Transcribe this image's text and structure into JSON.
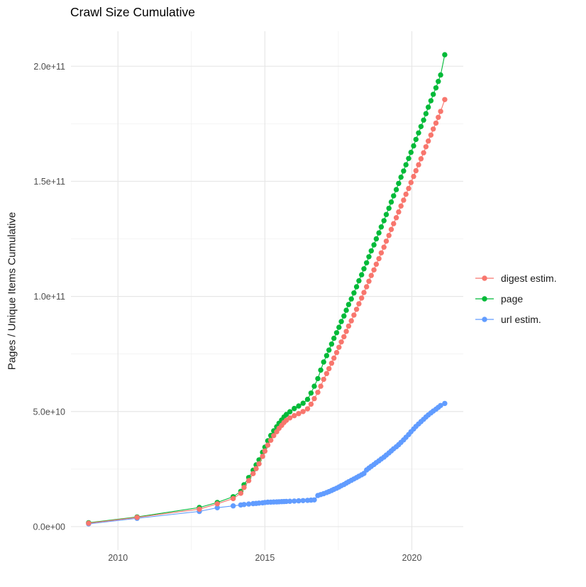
{
  "title": "Crawl Size Cumulative",
  "axes": {
    "y_title": "Pages / Unique Items Cumulative",
    "y_ticks": [
      {
        "label": "0.0e+00",
        "value": 0
      },
      {
        "label": "5.0e+10",
        "value": 50000000000.0
      },
      {
        "label": "1.0e+11",
        "value": 100000000000.0
      },
      {
        "label": "1.5e+11",
        "value": 150000000000.0
      },
      {
        "label": "2.0e+11",
        "value": 200000000000.0
      }
    ],
    "y_minor": [
      25000000000.0,
      75000000000.0,
      125000000000.0,
      175000000000.0
    ],
    "x_ticks": [
      {
        "label": "2010",
        "value": 2010
      },
      {
        "label": "2015",
        "value": 2015
      },
      {
        "label": "2020",
        "value": 2020
      }
    ],
    "x_minor": [
      2012.5,
      2017.5
    ]
  },
  "legend": {
    "entries": [
      {
        "label": "digest estim.",
        "color": "#F8766D"
      },
      {
        "label": "page",
        "color": "#00BA38"
      },
      {
        "label": "url estim.",
        "color": "#619CFF"
      }
    ]
  },
  "colors": {
    "background": "#ffffff",
    "grid_major": "#e7e7e7",
    "grid_minor": "#f0f0f0",
    "tick_text": "#4d4d4d",
    "digest": "#F8766D",
    "page": "#00BA38",
    "url": "#619CFF"
  },
  "chart_data": {
    "type": "line",
    "title": "Crawl Size Cumulative",
    "xlabel": "",
    "ylabel": "Pages / Unique Items Cumulative",
    "x_unit": "year (decimal, crawl date)",
    "xlim": [
      2008.4,
      2021.75
    ],
    "ylim": [
      -10200000000.0,
      215200000000.0
    ],
    "grid": true,
    "legend_position": "right",
    "marker": "point",
    "x": [
      2009,
      2010.65,
      2012.77,
      2013.38,
      2013.92,
      2014.18,
      2014.29,
      2014.45,
      2014.6,
      2014.7,
      2014.8,
      2014.92,
      2015,
      2015.1,
      2015.2,
      2015.3,
      2015.4,
      2015.48,
      2015.57,
      2015.65,
      2015.73,
      2015.85,
      2016,
      2016.15,
      2016.3,
      2016.45,
      2016.57,
      2016.68,
      2016.8,
      2016.9,
      2017,
      2017.1,
      2017.18,
      2017.27,
      2017.35,
      2017.44,
      2017.52,
      2017.6,
      2017.69,
      2017.77,
      2017.85,
      2017.94,
      2018.03,
      2018.12,
      2018.2,
      2018.29,
      2018.37,
      2018.46,
      2018.54,
      2018.62,
      2018.71,
      2018.79,
      2018.88,
      2018.96,
      2019.05,
      2019.13,
      2019.22,
      2019.3,
      2019.38,
      2019.47,
      2019.55,
      2019.63,
      2019.72,
      2019.8,
      2019.89,
      2019.97,
      2020.06,
      2020.14,
      2020.23,
      2020.31,
      2020.4,
      2020.48,
      2020.56,
      2020.65,
      2020.73,
      2020.82,
      2020.9,
      2020.98,
      2021.12
    ],
    "series": [
      {
        "name": "digest estim.",
        "color": "#F8766D",
        "values": [
          1500000000.0,
          4000000000.0,
          7600000000.0,
          9900000000.0,
          12200000000.0,
          14500000000.0,
          17000000000.0,
          20000000000.0,
          23000000000.0,
          25200000000.0,
          27300000000.0,
          30500000000.0,
          32800000000.0,
          35400000000.0,
          37500000000.0,
          39500000000.0,
          41200000000.0,
          42700000000.0,
          44000000000.0,
          45200000000.0,
          46200000000.0,
          47200000000.0,
          48200000000.0,
          49100000000.0,
          50000000000.0,
          51200000000.0,
          53200000000.0,
          55600000000.0,
          58300000000.0,
          61000000000.0,
          64000000000.0,
          66500000000.0,
          68600000000.0,
          71000000000.0,
          73200000000.0,
          75600000000.0,
          77900000000.0,
          80200000000.0,
          82500000000.0,
          84800000000.0,
          87100000000.0,
          89400000000.0,
          91900000000.0,
          94400000000.0,
          96800000000.0,
          99300000000.0,
          101700000000.0,
          104200000000.0,
          106600000000.0,
          109100000000.0,
          111500000000.0,
          114000000000.0,
          116400000000.0,
          118900000000.0,
          121400000000.0,
          124000000000.0,
          126500000000.0,
          129100000000.0,
          131600000000.0,
          134200000000.0,
          136700000000.0,
          139300000000.0,
          141800000000.0,
          144400000000.0,
          146900000000.0,
          149500000000.0,
          152100000000.0,
          154600000000.0,
          157200000000.0,
          159800000000.0,
          162400000000.0,
          165000000000.0,
          167500000000.0,
          170100000000.0,
          172700000000.0,
          175300000000.0,
          177800000000.0,
          180400000000.0,
          185500000000.0
        ]
      },
      {
        "name": "page",
        "color": "#00BA38",
        "values": [
          1700000000.0,
          4200000000.0,
          8300000000.0,
          10500000000.0,
          13000000000.0,
          15300000000.0,
          18200000000.0,
          21300000000.0,
          24500000000.0,
          26800000000.0,
          29000000000.0,
          32300000000.0,
          34500000000.0,
          37300000000.0,
          39600000000.0,
          41600000000.0,
          43400000000.0,
          44900000000.0,
          46300000000.0,
          47600000000.0,
          48700000000.0,
          49900000000.0,
          51300000000.0,
          52400000000.0,
          53600000000.0,
          55300000000.0,
          58000000000.0,
          61000000000.0,
          64300000000.0,
          68000000000.0,
          71500000000.0,
          74300000000.0,
          76700000000.0,
          79300000000.0,
          81800000000.0,
          84200000000.0,
          86600000000.0,
          89100000000.0,
          91500000000.0,
          94000000000.0,
          96500000000.0,
          98900000000.0,
          101500000000.0,
          104200000000.0,
          106800000000.0,
          109400000000.0,
          112000000000.0,
          114600000000.0,
          117200000000.0,
          119800000000.0,
          122400000000.0,
          125000000000.0,
          127600000000.0,
          130200000000.0,
          132900000000.0,
          135600000000.0,
          138300000000.0,
          141000000000.0,
          143700000000.0,
          146400000000.0,
          149100000000.0,
          151800000000.0,
          154500000000.0,
          157200000000.0,
          159900000000.0,
          162600000000.0,
          165400000000.0,
          168200000000.0,
          171000000000.0,
          173800000000.0,
          176600000000.0,
          179400000000.0,
          182200000000.0,
          185000000000.0,
          187800000000.0,
          190600000000.0,
          193400000000.0,
          196200000000.0,
          205000000000.0
        ]
      },
      {
        "name": "url estim.",
        "color": "#619CFF",
        "values": [
          1200000000.0,
          3600000000.0,
          6600000000.0,
          8200000000.0,
          9000000000.0,
          9400000000.0,
          9600000000.0,
          9800000000.0,
          10000000000.0,
          10100000000.0,
          10200000000.0,
          10350000000.0,
          10500000000.0,
          10600000000.0,
          10650000000.0,
          10700000000.0,
          10750000000.0,
          10800000000.0,
          10850000000.0,
          10900000000.0,
          10950000000.0,
          11000000000.0,
          11100000000.0,
          11200000000.0,
          11300000000.0,
          11400000000.0,
          11500000000.0,
          11600000000.0,
          13500000000.0,
          13900000000.0,
          14300000000.0,
          14800000000.0,
          15200000000.0,
          15700000000.0,
          16200000000.0,
          16700000000.0,
          17200000000.0,
          17800000000.0,
          18300000000.0,
          18900000000.0,
          19500000000.0,
          20100000000.0,
          20700000000.0,
          21300000000.0,
          21900000000.0,
          22500000000.0,
          23100000000.0,
          24600000000.0,
          25400000000.0,
          26200000000.0,
          27000000000.0,
          27800000000.0,
          28600000000.0,
          29400000000.0,
          30200000000.0,
          31100000000.0,
          32000000000.0,
          32900000000.0,
          33800000000.0,
          34700000000.0,
          35600000000.0,
          36600000000.0,
          37700000000.0,
          38800000000.0,
          40000000000.0,
          41200000000.0,
          42400000000.0,
          43500000000.0,
          44600000000.0,
          45600000000.0,
          46600000000.0,
          47600000000.0,
          48500000000.0,
          49400000000.0,
          50200000000.0,
          51000000000.0,
          51800000000.0,
          52600000000.0,
          53500000000.0
        ]
      }
    ]
  }
}
